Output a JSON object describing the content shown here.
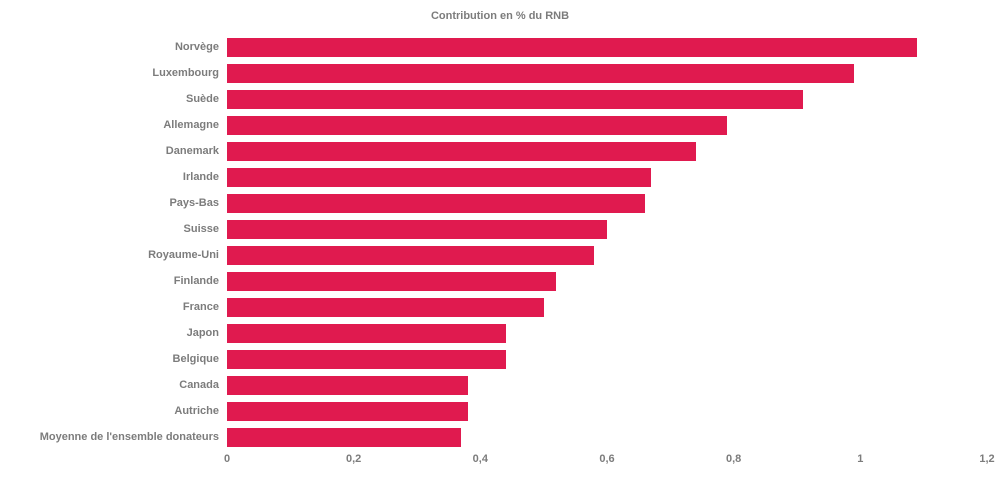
{
  "chart_data": {
    "type": "bar",
    "orientation": "horizontal",
    "title": "Contribution en % du RNB",
    "categories": [
      "Norvège",
      "Luxembourg",
      "Suède",
      "Allemagne",
      "Danemark",
      "Irlande",
      "Pays-Bas",
      "Suisse",
      "Royaume-Uni",
      "Finlande",
      "France",
      "Japon",
      "Belgique",
      "Canada",
      "Autriche",
      "Moyenne de l'ensemble donateurs"
    ],
    "values": [
      1.09,
      0.99,
      0.91,
      0.79,
      0.74,
      0.67,
      0.66,
      0.6,
      0.58,
      0.52,
      0.5,
      0.44,
      0.44,
      0.38,
      0.38,
      0.37
    ],
    "xlabel": "",
    "ylabel": "",
    "xlim": [
      0,
      1.2
    ],
    "x_ticks": [
      0,
      0.2,
      0.4,
      0.6,
      0.8,
      1,
      1.2
    ],
    "x_tick_labels": [
      "0",
      "0,2",
      "0,4",
      "0,6",
      "0,8",
      "1",
      "1,2"
    ],
    "grid": false,
    "legend": "none",
    "colors": {
      "bar": "#e01a4f",
      "text": "#7c7c7c",
      "background": "#ffffff"
    }
  }
}
